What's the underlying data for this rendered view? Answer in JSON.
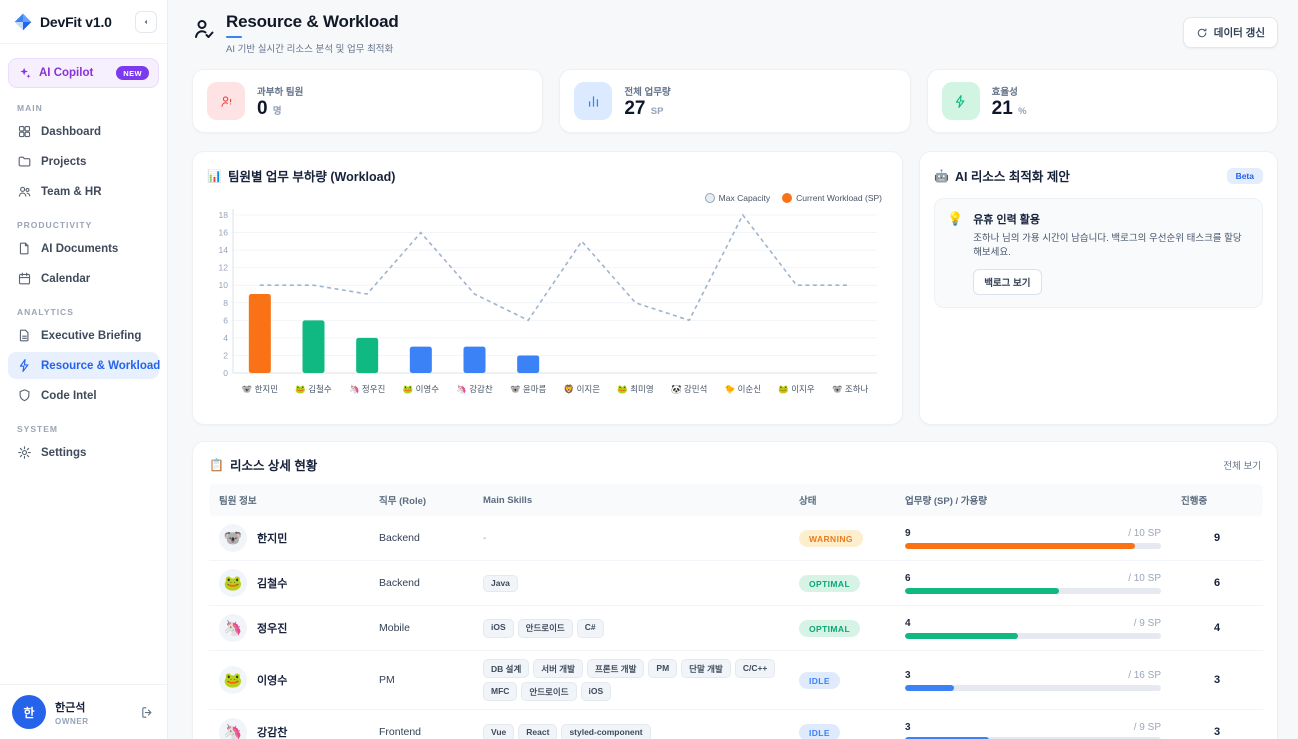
{
  "app": {
    "accent_color": "#2563eb"
  },
  "sidebar": {
    "logo_text": "DevFit v1.0",
    "copilot": {
      "label": "AI Copilot",
      "badge": "NEW"
    },
    "sections": [
      {
        "title": "MAIN",
        "items": [
          {
            "label": "Dashboard",
            "icon": "dashboard"
          },
          {
            "label": "Projects",
            "icon": "folder"
          },
          {
            "label": "Team & HR",
            "icon": "users"
          }
        ]
      },
      {
        "title": "PRODUCTIVITY",
        "items": [
          {
            "label": "AI Documents",
            "icon": "file"
          },
          {
            "label": "Calendar",
            "icon": "calendar"
          }
        ]
      },
      {
        "title": "ANALYTICS",
        "items": [
          {
            "label": "Executive Briefing",
            "icon": "doc"
          },
          {
            "label": "Resource & Workload",
            "icon": "bolt",
            "active": true
          },
          {
            "label": "Code Intel",
            "icon": "shield"
          }
        ]
      },
      {
        "title": "SYSTEM",
        "items": [
          {
            "label": "Settings",
            "icon": "gear"
          }
        ]
      }
    ],
    "profile": {
      "avatar_initial": "한",
      "name": "한근석",
      "role": "OWNER"
    }
  },
  "header": {
    "title": "Resource & Workload",
    "subtitle": "AI 기반 실시간 리소스 분석 및 업무 최적화",
    "refresh_button": "데이터 갱신"
  },
  "stats": [
    {
      "label": "과부하 팀원",
      "value": "0",
      "unit": "명",
      "icon": "user-alert",
      "icon_bg": "#fde3e3",
      "icon_color": "#ef4444"
    },
    {
      "label": "전체 업무량",
      "value": "27",
      "unit": "SP",
      "icon": "bar-chart",
      "icon_bg": "#dbeafe",
      "icon_color": "#3b82f6"
    },
    {
      "label": "효율성",
      "value": "21",
      "unit": "%",
      "icon": "bolt",
      "icon_bg": "#d2f5e3",
      "icon_color": "#10b981"
    }
  ],
  "chart_card": {
    "emoji": "📊",
    "title": "팀원별 업무 부하량 (Workload)",
    "legend": [
      {
        "label": "Max Capacity",
        "swatch_fill": "#e8edf3",
        "swatch_border": "#94a3b8"
      },
      {
        "label": "Current Workload (SP)",
        "swatch_fill": "#f97316",
        "swatch_border": "#f97316"
      }
    ]
  },
  "chart_data": {
    "type": "bar",
    "title": "팀원별 업무 부하량 (Workload)",
    "categories": [
      "한지민",
      "김철수",
      "정우진",
      "이영수",
      "강감찬",
      "윤마름",
      "이지은",
      "최미영",
      "강민석",
      "이순신",
      "이지우",
      "조하나"
    ],
    "category_emojis": [
      "🐨",
      "🐸",
      "🦄",
      "🐸",
      "🦄",
      "🐨",
      "🦁",
      "🐸",
      "🐼",
      "🐤",
      "🐸",
      "🐨"
    ],
    "series": [
      {
        "name": "Current Workload (SP)",
        "type": "bar",
        "values": [
          9,
          6,
          4,
          3,
          3,
          2,
          0,
          0,
          0,
          0,
          0,
          0
        ],
        "colors": [
          "#f97316",
          "#10b981",
          "#10b981",
          "#3b82f6",
          "#3b82f6",
          "#3b82f6",
          "#3b82f6",
          "#3b82f6",
          "#3b82f6",
          "#3b82f6",
          "#3b82f6",
          "#3b82f6"
        ]
      },
      {
        "name": "Max Capacity",
        "type": "line",
        "values": [
          10,
          10,
          9,
          16,
          9,
          6,
          15,
          8,
          6,
          18,
          10,
          10
        ],
        "color": "#9fb4cd",
        "dashed": true
      }
    ],
    "ylim": [
      0,
      18
    ],
    "ytick_step": 2,
    "grid": true,
    "legend_position": "top-right",
    "xlabel": "",
    "ylabel": ""
  },
  "ai_card": {
    "emoji": "🤖",
    "title": "AI 리소스 최적화 제안",
    "badge": "Beta",
    "suggestion": {
      "emoji": "💡",
      "title": "유휴 인력 활용",
      "description": "조하나 님의 가용 시간이 남습니다. 백로그의 우선순위 태스크를 할당해보세요.",
      "button": "백로그 보기"
    }
  },
  "table": {
    "emoji": "📋",
    "title": "리소스 상세 현황",
    "view_all": "전체 보기",
    "columns": [
      "팀원 정보",
      "직무 (Role)",
      "Main Skills",
      "상태",
      "업무량 (SP) / 가용량",
      "진행중"
    ],
    "rows": [
      {
        "emoji": "🐨",
        "name": "한지민",
        "role": "Backend",
        "skills": [],
        "skills_empty": "-",
        "status": "WARNING",
        "status_type": "warning",
        "workload": "9",
        "capacity": "/ 10 SP",
        "percent": 90,
        "bar_color": "#f97316",
        "in_progress": "9"
      },
      {
        "emoji": "🐸",
        "name": "김철수",
        "role": "Backend",
        "skills": [
          "Java"
        ],
        "status": "OPTIMAL",
        "status_type": "optimal",
        "workload": "6",
        "capacity": "/ 10 SP",
        "percent": 60,
        "bar_color": "#10b981",
        "in_progress": "6"
      },
      {
        "emoji": "🦄",
        "name": "정우진",
        "role": "Mobile",
        "skills": [
          "iOS",
          "안드로이드",
          "C#"
        ],
        "status": "OPTIMAL",
        "status_type": "optimal",
        "workload": "4",
        "capacity": "/ 9 SP",
        "percent": 44,
        "bar_color": "#10b981",
        "in_progress": "4"
      },
      {
        "emoji": "🐸",
        "name": "이영수",
        "role": "PM",
        "skills": [
          "DB 설계",
          "서버 개발",
          "프론트 개발",
          "PM",
          "단말 개발",
          "C/C++",
          "MFC",
          "안드로이드",
          "iOS"
        ],
        "status": "IDLE",
        "status_type": "idle",
        "workload": "3",
        "capacity": "/ 16 SP",
        "percent": 19,
        "bar_color": "#3b82f6",
        "in_progress": "3"
      },
      {
        "emoji": "🦄",
        "name": "강감찬",
        "role": "Frontend",
        "skills": [
          "Vue",
          "React",
          "styled-component"
        ],
        "status": "IDLE",
        "status_type": "idle",
        "workload": "3",
        "capacity": "/ 9 SP",
        "percent": 33,
        "bar_color": "#3b82f6",
        "in_progress": "3"
      }
    ]
  }
}
